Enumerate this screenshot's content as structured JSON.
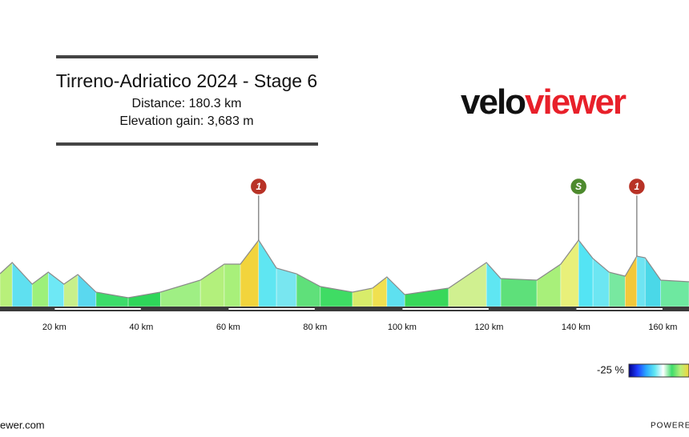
{
  "chart_data": {
    "type": "elevation-profile",
    "title": "Tirreno-Adriatico 2024 - Stage 6",
    "subtitle": "Distance: 180.3 km",
    "subtitle2": "Elevation gain: 3,683 m",
    "logo_left": "velo",
    "logo_right": "viewer",
    "footer_left": "ewer.com",
    "footer_right": "POWERED",
    "legend_label": "-25 %",
    "x": [
      7.5,
      10.3,
      14.9,
      18.6,
      22.2,
      25.4,
      29.6,
      37,
      44.4,
      53.6,
      59.1,
      62.8,
      67,
      71.1,
      75.7,
      81.2,
      88.6,
      93.2,
      96.5,
      100.6,
      110.7,
      119.4,
      122.7,
      131,
      136.5,
      140.6,
      143.9,
      147.6,
      151.3,
      154,
      155.9,
      159.5,
      166
    ],
    "values": [
      410,
      550,
      280,
      430,
      280,
      400,
      180,
      110,
      180,
      330,
      530,
      530,
      830,
      480,
      410,
      250,
      180,
      230,
      370,
      150,
      230,
      550,
      350,
      330,
      530,
      830,
      600,
      430,
      380,
      630,
      610,
      330,
      310
    ],
    "segment_colors": [
      "#b8f07a",
      "#5fe0f0",
      "#9df07a",
      "#6ee8f5",
      "#c8f08a",
      "#5ad8ef",
      "#3ddc6a",
      "#2fd65a",
      "#9fef84",
      "#b3f07c",
      "#a8f07a",
      "#f2d43c",
      "#5fe6f2",
      "#78e6f0",
      "#5fe07a",
      "#3fdc64",
      "#d8ec6a",
      "#f0e050",
      "#5ee0f0",
      "#38d85a",
      "#d0f090",
      "#5fe6f2",
      "#5ee07a",
      "#a8f07a",
      "#e8f07a",
      "#54e4f4",
      "#6ce6f2",
      "#78e8a0",
      "#f2c83a",
      "#6ee4f2",
      "#4ad8e8",
      "#6ee8a0"
    ],
    "line_color": "#8a8a8a",
    "xlim": [
      7.5,
      166
    ],
    "ylim": [
      0,
      1400
    ],
    "xticks": [
      {
        "value": 20,
        "label": "20 km"
      },
      {
        "value": 40,
        "label": "40 km"
      },
      {
        "value": 60,
        "label": "60 km"
      },
      {
        "value": 80,
        "label": "80 km"
      },
      {
        "value": 100,
        "label": "100 km"
      },
      {
        "value": 120,
        "label": "120 km"
      },
      {
        "value": 140,
        "label": "140 km"
      },
      {
        "value": 160,
        "label": "160 km"
      }
    ],
    "markers": [
      {
        "x": 67,
        "label": "1",
        "color": "#b83226"
      },
      {
        "x": 140.6,
        "label": "S",
        "color": "#4d8a2e"
      },
      {
        "x": 154,
        "label": "1",
        "color": "#b83226"
      }
    ],
    "legend_colors": [
      "#00008b",
      "#1e3cff",
      "#2aa8ff",
      "#5fe6f2",
      "#ffffff",
      "#3ddc6a",
      "#b8f07a",
      "#f2d43c"
    ]
  }
}
